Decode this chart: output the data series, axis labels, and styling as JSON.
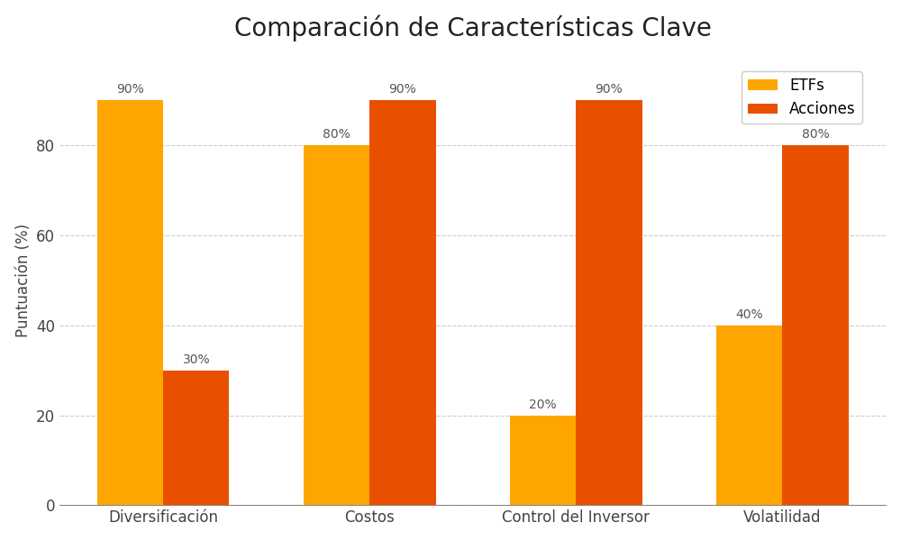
{
  "title": "Comparación de Características Clave",
  "categories": [
    "Diversificación",
    "Costos",
    "Control del Inversor",
    "Volatilidad"
  ],
  "etfs_values": [
    90,
    80,
    20,
    40
  ],
  "acciones_values": [
    30,
    90,
    90,
    80
  ],
  "etfs_label": "ETFs",
  "acciones_label": "Acciones",
  "etfs_color": "#FFA500",
  "acciones_color": "#E85000",
  "ylabel": "Puntuación (%)",
  "ylim": [
    0,
    100
  ],
  "yticks": [
    0,
    20,
    40,
    60,
    80
  ],
  "bar_width": 0.32,
  "title_fontsize": 20,
  "label_fontsize": 12,
  "tick_fontsize": 12,
  "annotation_fontsize": 10,
  "legend_fontsize": 12,
  "background_color": "#ffffff",
  "grid_color": "#aaaaaa",
  "grid_style": "--",
  "grid_alpha": 0.6,
  "figure_width": 10.0,
  "figure_height": 6.0,
  "dpi": 100
}
